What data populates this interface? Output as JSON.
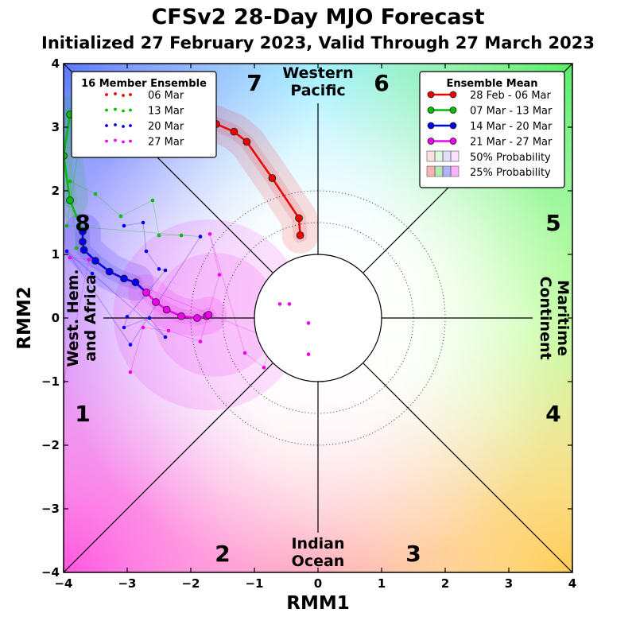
{
  "chart_data": {
    "type": "scatter",
    "title": "CFSv2 28-Day MJO Forecast",
    "subtitle": "Initialized 27 February 2023, Valid Through 27 March 2023",
    "xlabel": "RMM1",
    "ylabel": "RMM2",
    "xlim": [
      -4,
      4
    ],
    "ylim": [
      -4,
      4
    ],
    "x_ticks": [
      "−4",
      "−3",
      "−2",
      "−1",
      "0",
      "1",
      "2",
      "3",
      "4"
    ],
    "y_ticks": [
      "−4",
      "−3",
      "−2",
      "−1",
      "0",
      "1",
      "2",
      "3",
      "4"
    ],
    "phase_labels": [
      {
        "label": "1",
        "x": -3.7,
        "y": -1.5
      },
      {
        "label": "2",
        "x": -1.5,
        "y": -3.7
      },
      {
        "label": "3",
        "x": 1.5,
        "y": -3.7
      },
      {
        "label": "4",
        "x": 3.7,
        "y": -1.5
      },
      {
        "label": "5",
        "x": 3.7,
        "y": 1.5
      },
      {
        "label": "6",
        "x": 1.0,
        "y": 3.7
      },
      {
        "label": "7",
        "x": -1.0,
        "y": 3.7
      },
      {
        "label": "8",
        "x": -3.7,
        "y": 1.5
      }
    ],
    "region_labels": {
      "western_pacific": [
        "Western",
        "Pacific"
      ],
      "indian_ocean": [
        "Indian",
        "Ocean"
      ],
      "west_hem": [
        "West. Hem.",
        "and Africa"
      ],
      "maritime": [
        "Maritime",
        "Continent"
      ]
    },
    "ensemble_mean": [
      {
        "name": "28 Feb - 06 Mar",
        "color": "#ee0000",
        "x": [
          -0.28,
          -0.3,
          -0.72,
          -1.12,
          -1.32,
          -1.6,
          -1.88
        ],
        "y": [
          1.3,
          1.57,
          2.2,
          2.77,
          2.93,
          3.05,
          3.15
        ]
      },
      {
        "name": "07 Mar - 13 Mar",
        "color": "#00bb00",
        "x": [
          -1.95,
          -2.3,
          -2.85,
          -3.4,
          -3.9,
          -4.0,
          -3.9
        ],
        "y": [
          3.4,
          3.55,
          3.45,
          3.3,
          3.2,
          2.55,
          1.85
        ]
      },
      {
        "name": "14 Mar - 20 Mar",
        "color": "#0000ee",
        "x": [
          -3.7,
          -3.7,
          -3.68,
          -3.5,
          -3.28,
          -3.05,
          -2.87
        ],
        "y": [
          1.36,
          1.2,
          1.07,
          0.9,
          0.73,
          0.62,
          0.56
        ]
      },
      {
        "name": "21 Mar - 27 Mar",
        "color": "#ee00ee",
        "x": [
          -2.7,
          -2.55,
          -2.38,
          -2.15,
          -1.9,
          -1.75,
          -1.72
        ],
        "y": [
          0.4,
          0.25,
          0.13,
          0.03,
          0.0,
          0.03,
          0.05
        ]
      }
    ],
    "members": [
      {
        "name": "06 Mar",
        "color": "#ee0000",
        "x": [],
        "y": []
      },
      {
        "name": "13 Mar",
        "color": "#00bb00",
        "x": [
          -3.8,
          -3.9,
          -3.5,
          -3.1,
          -2.6,
          -2.5,
          -2.15,
          -1.85,
          -3.95,
          -3.7,
          -3.55
        ],
        "y": [
          1.1,
          2.15,
          1.95,
          1.6,
          1.85,
          1.3,
          1.3,
          1.28,
          1.45,
          3.1,
          2.95
        ]
      },
      {
        "name": "20 Mar",
        "color": "#0000ee",
        "x": [
          -3.05,
          -2.75,
          -2.7,
          -2.5,
          -2.4,
          -3.0,
          -3.05,
          -2.65,
          -2.4,
          -3.55,
          -3.95,
          -2.95,
          -1.85
        ],
        "y": [
          1.45,
          1.5,
          1.05,
          0.77,
          0.75,
          0.02,
          -0.15,
          0.0,
          -0.3,
          0.7,
          1.05,
          -0.42,
          1.28
        ]
      },
      {
        "name": "27 Mar",
        "color": "#ee00ee",
        "x": [
          -2.95,
          -2.75,
          -2.35,
          -1.85,
          -1.55,
          -1.7,
          -1.15,
          -0.85,
          -0.6,
          -0.45,
          -0.15,
          -0.15,
          -3.9,
          -3.6,
          -4.0
        ],
        "y": [
          -0.85,
          -0.15,
          -0.2,
          -0.37,
          0.68,
          1.32,
          -0.55,
          -0.78,
          0.22,
          0.22,
          -0.08,
          -0.57,
          0.95,
          0.92,
          -1.0
        ]
      }
    ],
    "legend_left": {
      "title": "16 Member Ensemble",
      "entries": [
        "06 Mar",
        "13 Mar",
        "20 Mar",
        "27 Mar"
      ]
    },
    "legend_right": {
      "title": "Ensemble Mean",
      "entries": [
        "28 Feb - 06 Mar",
        "07 Mar - 13 Mar",
        "14 Mar - 20 Mar",
        "21 Mar - 27 Mar"
      ],
      "prob_entries": [
        "50% Probability",
        "25% Probability"
      ]
    },
    "colors": {
      "red": "#ee0000",
      "green": "#00bb00",
      "blue": "#0000ee",
      "magenta": "#ee00ee"
    }
  }
}
